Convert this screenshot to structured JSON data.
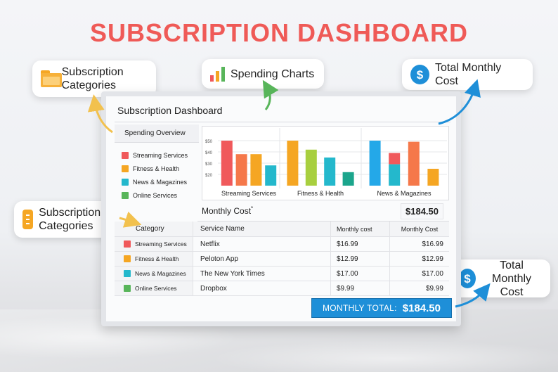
{
  "headline": "SUBSCRIPTION DASHBOARD",
  "callouts": {
    "categories_top": "Subscription Categories",
    "spending_charts": "Spending Charts",
    "total_cost_top": "Total Monthly Cost",
    "categories_side": "Subscription Categories",
    "total_cost_side": "Total Monthly Cost"
  },
  "icons": {
    "categories_top": "folder-icon",
    "spending_charts": "bar-chart-icon",
    "total_cost_top": "dollar-icon",
    "categories_side": "list-icon",
    "total_cost_side": "dollar-icon"
  },
  "colors": {
    "headline": "#ef5a57",
    "accent_blue": "#1e8fd8",
    "red": "#f0595b",
    "orange": "#f5a623",
    "teal": "#24b8cc",
    "green": "#58b55a"
  },
  "screen": {
    "title": "Subscription Dashboard",
    "overview_title": "Spending Overview",
    "legend": [
      {
        "label": "Streaming Services",
        "color": "#f0595b"
      },
      {
        "label": "Fitness & Health",
        "color": "#f5a623"
      },
      {
        "label": "News & Magazines",
        "color": "#24b8cc"
      },
      {
        "label": "Online Services",
        "color": "#58b55a"
      }
    ],
    "monthly_cost_label": "Monthly Cost",
    "monthly_cost_mark": "*",
    "monthly_cost_value": "$184.50",
    "table": {
      "headers": [
        "Category",
        "Service Name",
        "Monthly cost",
        "Monthly Cost"
      ],
      "rows": [
        {
          "category": "Streaming Services",
          "color": "#f0595b",
          "service": "Netflix",
          "cost1": "$16.99",
          "cost2": "$16.99"
        },
        {
          "category": "Fitness & Health",
          "color": "#f5a623",
          "service": "Peloton App",
          "cost1": "$12.99",
          "cost2": "$12.99"
        },
        {
          "category": "News & Magazines",
          "color": "#24b8cc",
          "service": "The New York Times",
          "cost1": "$17.00",
          "cost2": "$17.00"
        },
        {
          "category": "Online Services",
          "color": "#58b55a",
          "service": "Dropbox",
          "cost1": "$9.99",
          "cost2": "$9.99"
        }
      ]
    },
    "total": {
      "label": "MONTHLY TOTAL:",
      "value": "$184.50"
    }
  },
  "chart_data": {
    "type": "bar",
    "title": "",
    "xlabel": "",
    "ylabel": "",
    "y_tick_labels": [
      "$50",
      "$40",
      "$30",
      "$20"
    ],
    "ylim": [
      10,
      55
    ],
    "groups": [
      {
        "name": "Streaming Services",
        "bars": [
          {
            "value": 50,
            "color": "#f0595b"
          },
          {
            "value": 38,
            "color": "#f5784a"
          },
          {
            "value": 38,
            "color": "#f5a623"
          },
          {
            "value": 28,
            "color": "#24b8cc"
          }
        ]
      },
      {
        "name": "Fitness & Health",
        "bars": [
          {
            "value": 50,
            "color": "#f5a623"
          },
          {
            "value": 42,
            "color": "#a8cf3f"
          },
          {
            "value": 35,
            "color": "#24b8cc"
          },
          {
            "value": 22,
            "color": "#1ba58c"
          }
        ]
      },
      {
        "name": "News & Magazines",
        "bars": [
          {
            "value": 50,
            "color": "#24a8e8"
          },
          {
            "value": 39,
            "color": "#f0595b",
            "base_color": "#24b8cc",
            "base_value": 29
          },
          {
            "value": 49,
            "color": "#f5784a"
          },
          {
            "value": 25,
            "color": "#f5a623"
          }
        ]
      }
    ]
  }
}
